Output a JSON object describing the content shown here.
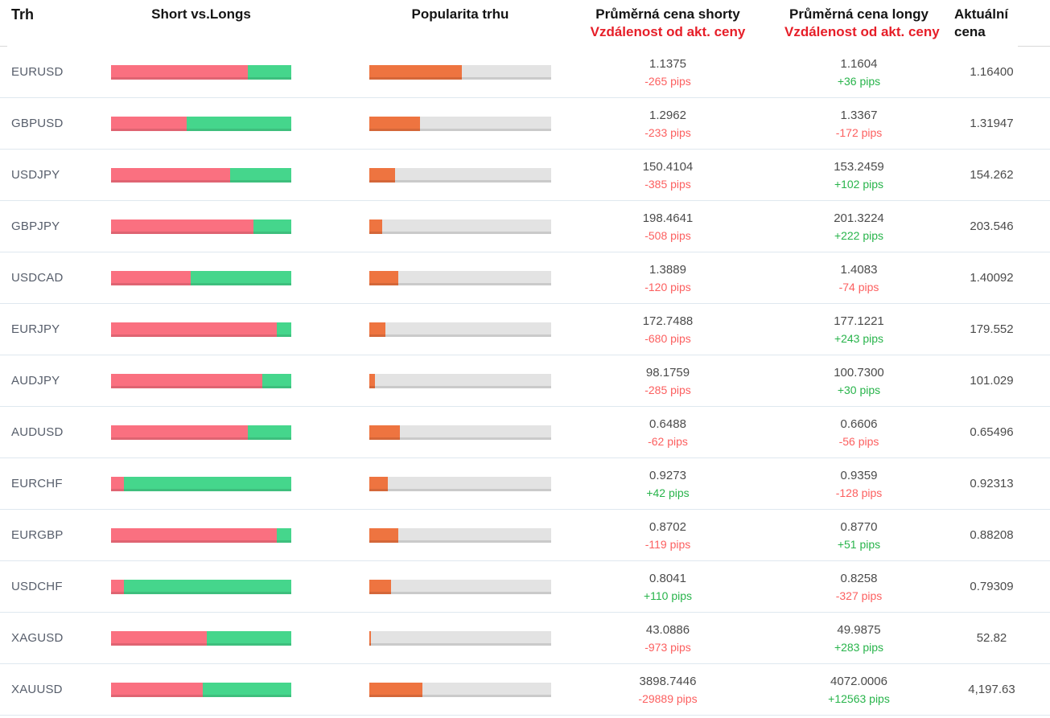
{
  "header": {
    "trh": "Trh",
    "short_vs_longs": "Short vs.Longs",
    "popularita": "Popularita trhu",
    "shorts_line1": "Průměrná cena shorty",
    "shorts_line2": "Vzdálenost od akt. ceny",
    "longs_line1": "Průměrná cena longy",
    "longs_line2": "Vzdálenost od akt. ceny",
    "aktualni_line1": "Aktuální",
    "aktualni_line2": "cena"
  },
  "colors": {
    "bar_red": "#fa7080",
    "bar_green": "#45d68c",
    "bar_orange": "#ee7440",
    "bar_track": "#e3e3e3",
    "pips_red": "#fc5f5f",
    "pips_green": "#28b44b",
    "header_red": "#e61e28",
    "header_black": "#141414",
    "label_color": "#575e6b",
    "value_color": "#4b4b4b",
    "separator": "#dfe8ef"
  },
  "chart_data": {
    "type": "table",
    "title": "Short vs.Longs / Popularita trhu",
    "columns": [
      "Trh",
      "Short %",
      "Long %",
      "Popularita %",
      "Průměrná cena shorty",
      "Vzdálenost od akt. ceny (shorty)",
      "Průměrná cena longy",
      "Vzdálenost od akt. ceny (longy)",
      "Aktuální cena"
    ],
    "rows_summary": "short_pct + long_pct = 100; popularity_pct is fill of gray track"
  },
  "rows": [
    {
      "market": "EURUSD",
      "short_pct": 76,
      "popularity_pct": 51,
      "short_price": "1.1375",
      "short_pips": "-265 pips",
      "long_price": "1.1604",
      "long_pips": "+36 pips",
      "current": "1.16400"
    },
    {
      "market": "GBPUSD",
      "short_pct": 42,
      "popularity_pct": 28,
      "short_price": "1.2962",
      "short_pips": "-233 pips",
      "long_price": "1.3367",
      "long_pips": "-172 pips",
      "current": "1.31947"
    },
    {
      "market": "USDJPY",
      "short_pct": 66,
      "popularity_pct": 14,
      "short_price": "150.4104",
      "short_pips": "-385 pips",
      "long_price": "153.2459",
      "long_pips": "+102 pips",
      "current": "154.262"
    },
    {
      "market": "GBPJPY",
      "short_pct": 79,
      "popularity_pct": 7,
      "short_price": "198.4641",
      "short_pips": "-508 pips",
      "long_price": "201.3224",
      "long_pips": "+222 pips",
      "current": "203.546"
    },
    {
      "market": "USDCAD",
      "short_pct": 44,
      "popularity_pct": 16,
      "short_price": "1.3889",
      "short_pips": "-120 pips",
      "long_price": "1.4083",
      "long_pips": "-74 pips",
      "current": "1.40092"
    },
    {
      "market": "EURJPY",
      "short_pct": 92,
      "popularity_pct": 9,
      "short_price": "172.7488",
      "short_pips": "-680 pips",
      "long_price": "177.1221",
      "long_pips": "+243 pips",
      "current": "179.552"
    },
    {
      "market": "AUDJPY",
      "short_pct": 84,
      "popularity_pct": 3,
      "short_price": "98.1759",
      "short_pips": "-285 pips",
      "long_price": "100.7300",
      "long_pips": "+30 pips",
      "current": "101.029"
    },
    {
      "market": "AUDUSD",
      "short_pct": 76,
      "popularity_pct": 17,
      "short_price": "0.6488",
      "short_pips": "-62 pips",
      "long_price": "0.6606",
      "long_pips": "-56 pips",
      "current": "0.65496"
    },
    {
      "market": "EURCHF",
      "short_pct": 7,
      "popularity_pct": 10,
      "short_price": "0.9273",
      "short_pips": "+42 pips",
      "long_price": "0.9359",
      "long_pips": "-128 pips",
      "current": "0.92313"
    },
    {
      "market": "EURGBP",
      "short_pct": 92,
      "popularity_pct": 16,
      "short_price": "0.8702",
      "short_pips": "-119 pips",
      "long_price": "0.8770",
      "long_pips": "+51 pips",
      "current": "0.88208"
    },
    {
      "market": "USDCHF",
      "short_pct": 7,
      "popularity_pct": 12,
      "short_price": "0.8041",
      "short_pips": "+110 pips",
      "long_price": "0.8258",
      "long_pips": "-327 pips",
      "current": "0.79309"
    },
    {
      "market": "XAGUSD",
      "short_pct": 53,
      "popularity_pct": 1,
      "short_price": "43.0886",
      "short_pips": "-973 pips",
      "long_price": "49.9875",
      "long_pips": "+283 pips",
      "current": "52.82"
    },
    {
      "market": "XAUUSD",
      "short_pct": 51,
      "popularity_pct": 29,
      "short_price": "3898.7446",
      "short_pips": "-29889 pips",
      "long_price": "4072.0006",
      "long_pips": "+12563 pips",
      "current": "4,197.63"
    }
  ]
}
